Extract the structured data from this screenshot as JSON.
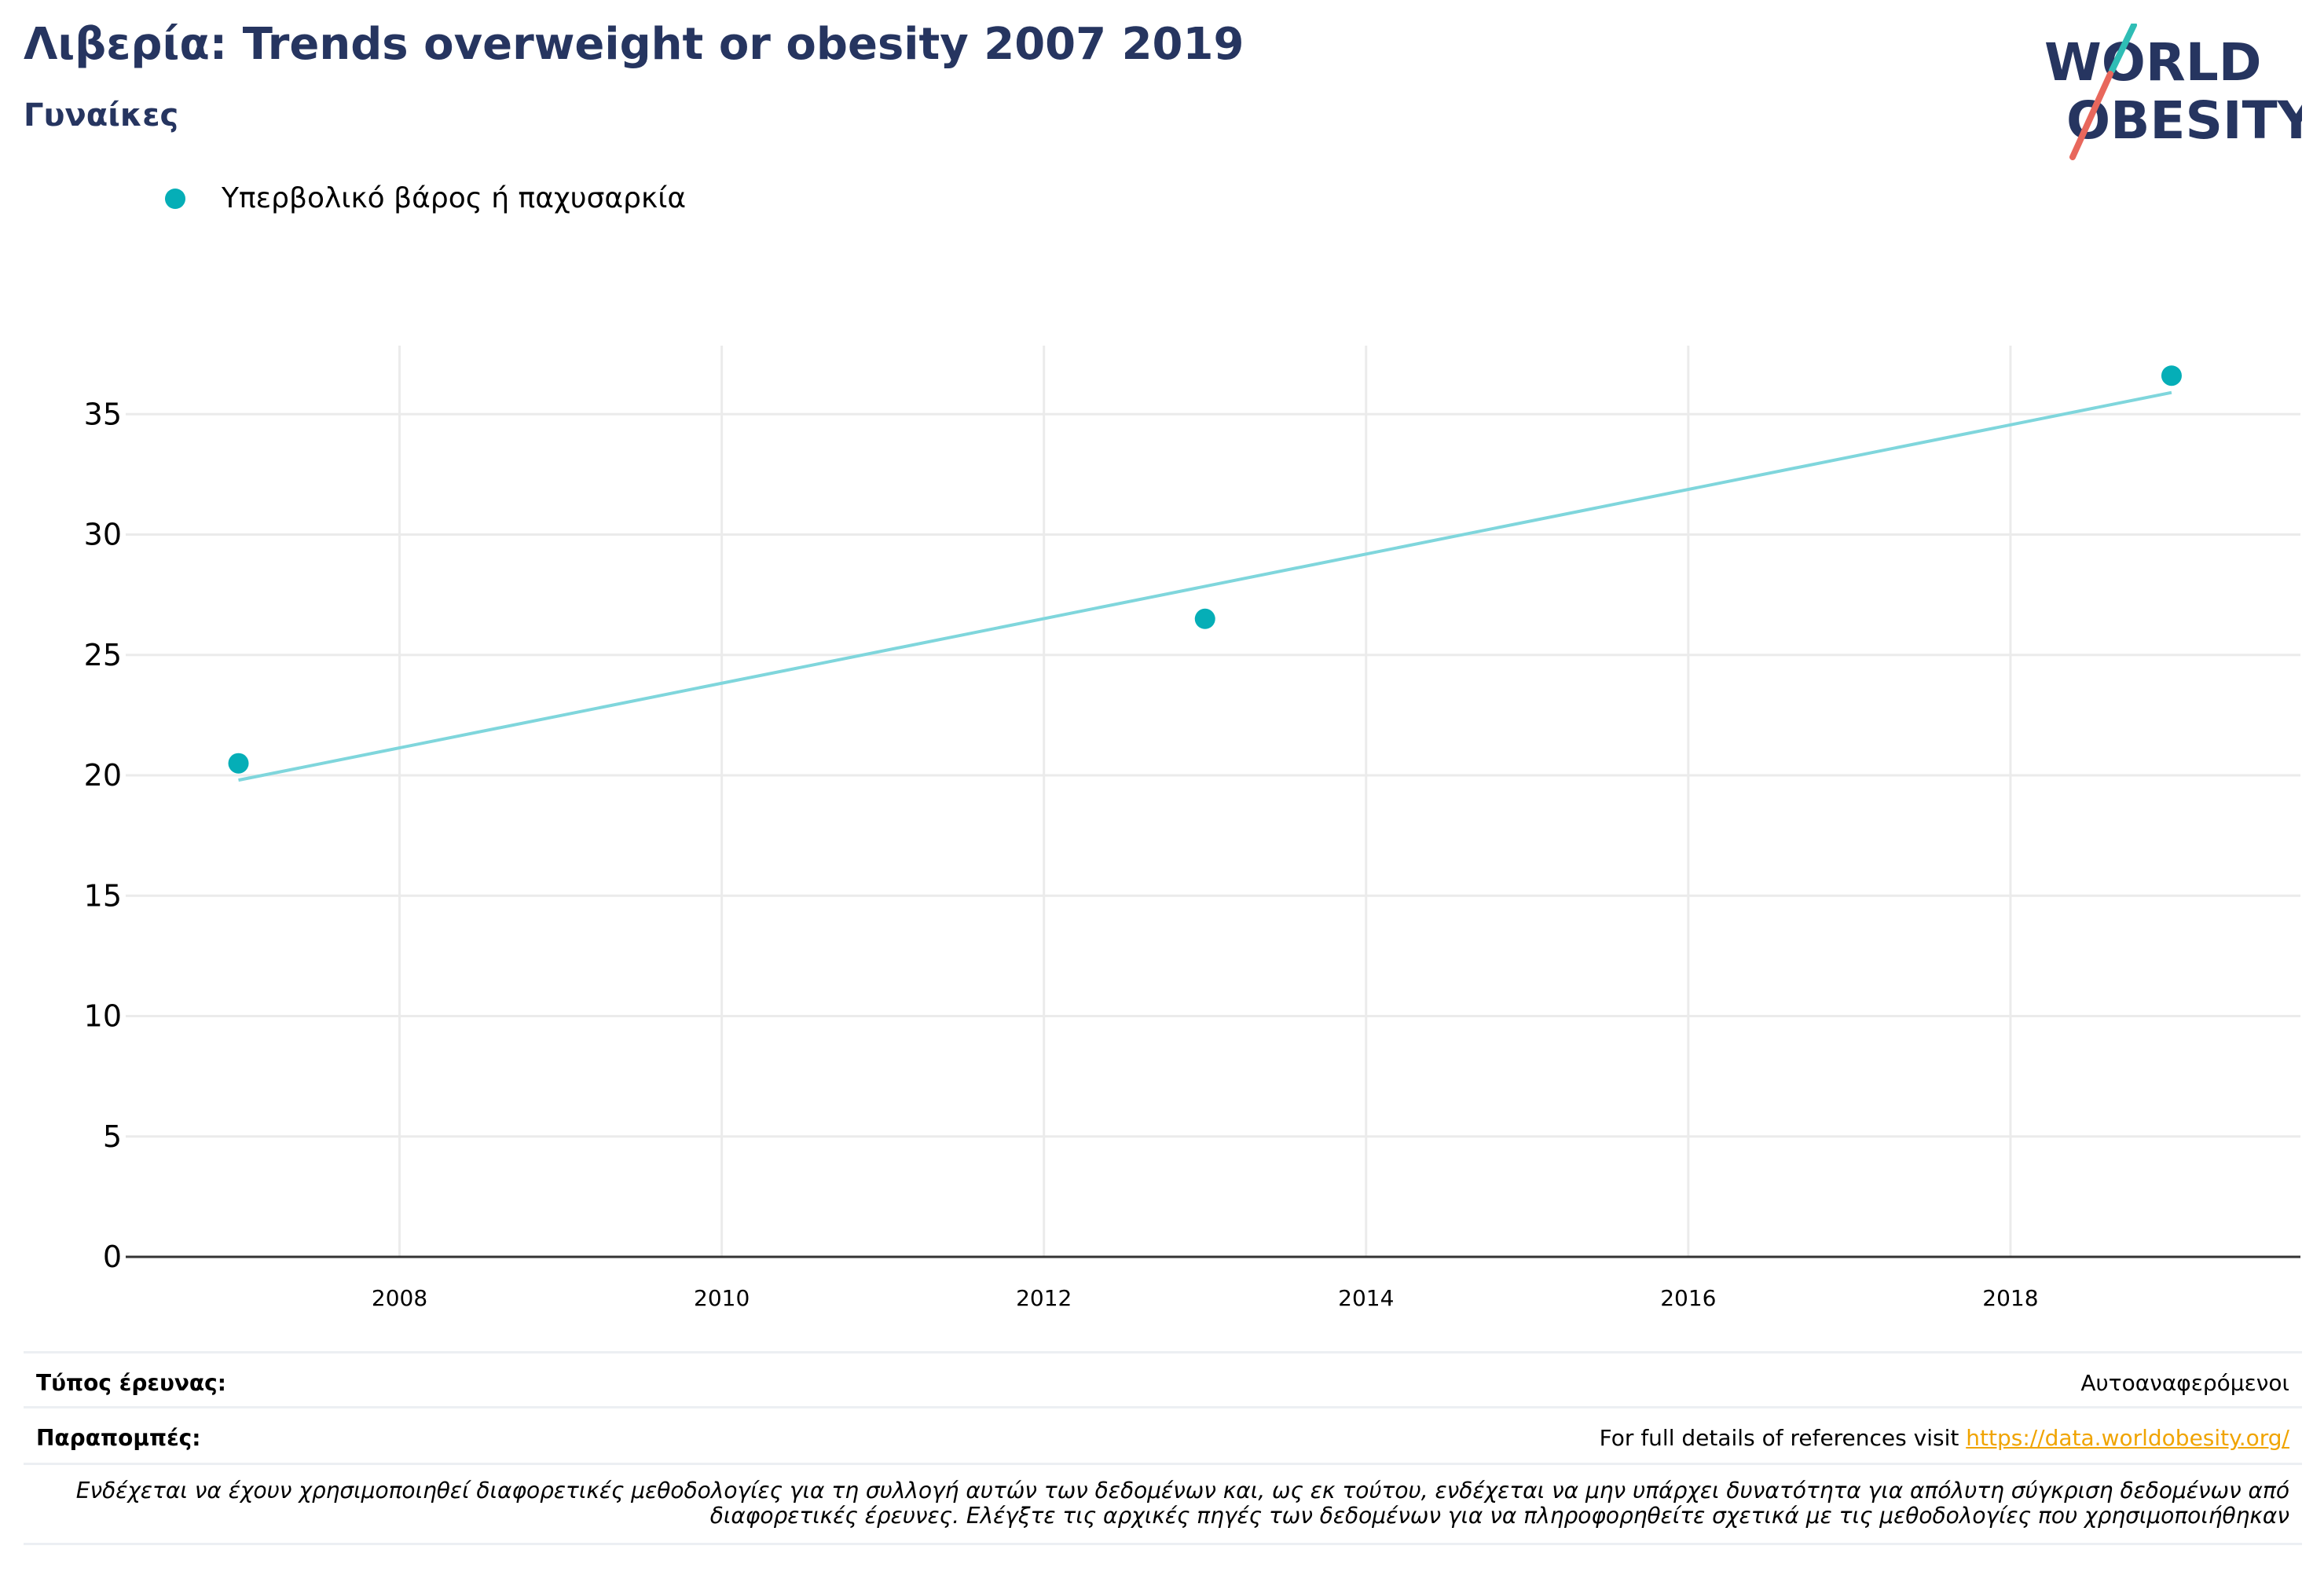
{
  "header": {
    "title": "Λιβερία: Trends overweight or obesity 2007 2019",
    "subtitle": "Γυναίκες"
  },
  "logo": {
    "line1": "WORLD",
    "line2": "OBESITY",
    "colors": {
      "text": "#263560",
      "slash_top": "#2fbdb5",
      "slash_bottom": "#e8675c"
    }
  },
  "legend": {
    "label": "Υπερβολικό βάρος ή παχυσαρκία",
    "color": "#05aeb7"
  },
  "chart_data": {
    "type": "scatter",
    "series": [
      {
        "name": "Υπερβολικό βάρος ή παχυσαρκία",
        "x": [
          2007,
          2013,
          2019
        ],
        "y": [
          20.5,
          26.5,
          36.6
        ],
        "color": "#05aeb7"
      }
    ],
    "trendline": {
      "x": [
        2007,
        2019
      ],
      "y": [
        19.8,
        35.9
      ],
      "color": "#7fd6dc"
    },
    "x_ticks": [
      "2008",
      "2010",
      "2012",
      "2014",
      "2016",
      "2018"
    ],
    "y_ticks": [
      "0",
      "5",
      "10",
      "15",
      "20",
      "25",
      "30",
      "35"
    ],
    "xlim": [
      2006.3,
      2019.8
    ],
    "ylim": [
      0,
      38.5
    ],
    "grid": true,
    "title": "Λιβερία: Trends overweight or obesity 2007 2019",
    "subtitle": "Γυναίκες",
    "legend_position": "top-left"
  },
  "footer": {
    "survey_type_label": "Τύπος έρευνας:",
    "survey_type_value": "Αυτοαναφερόμενοι",
    "references_label": "Παραπομπές:",
    "references_text": "For full details of references visit ",
    "references_link": "https://data.worldobesity.org/",
    "note": "Ενδέχεται να έχουν χρησιμοποιηθεί διαφορετικές μεθοδολογίες για τη συλλογή αυτών των δεδομένων και, ως εκ τούτου, ενδέχεται να μην υπάρχει δυνατότητα για απόλυτη σύγκριση δεδομένων από διαφορετικές έρευνες. Ελέγξτε τις αρχικές πηγές των δεδομένων για να πληροφορηθείτε σχετικά με τις μεθοδολογίες που χρησιμοποιήθηκαν"
  }
}
